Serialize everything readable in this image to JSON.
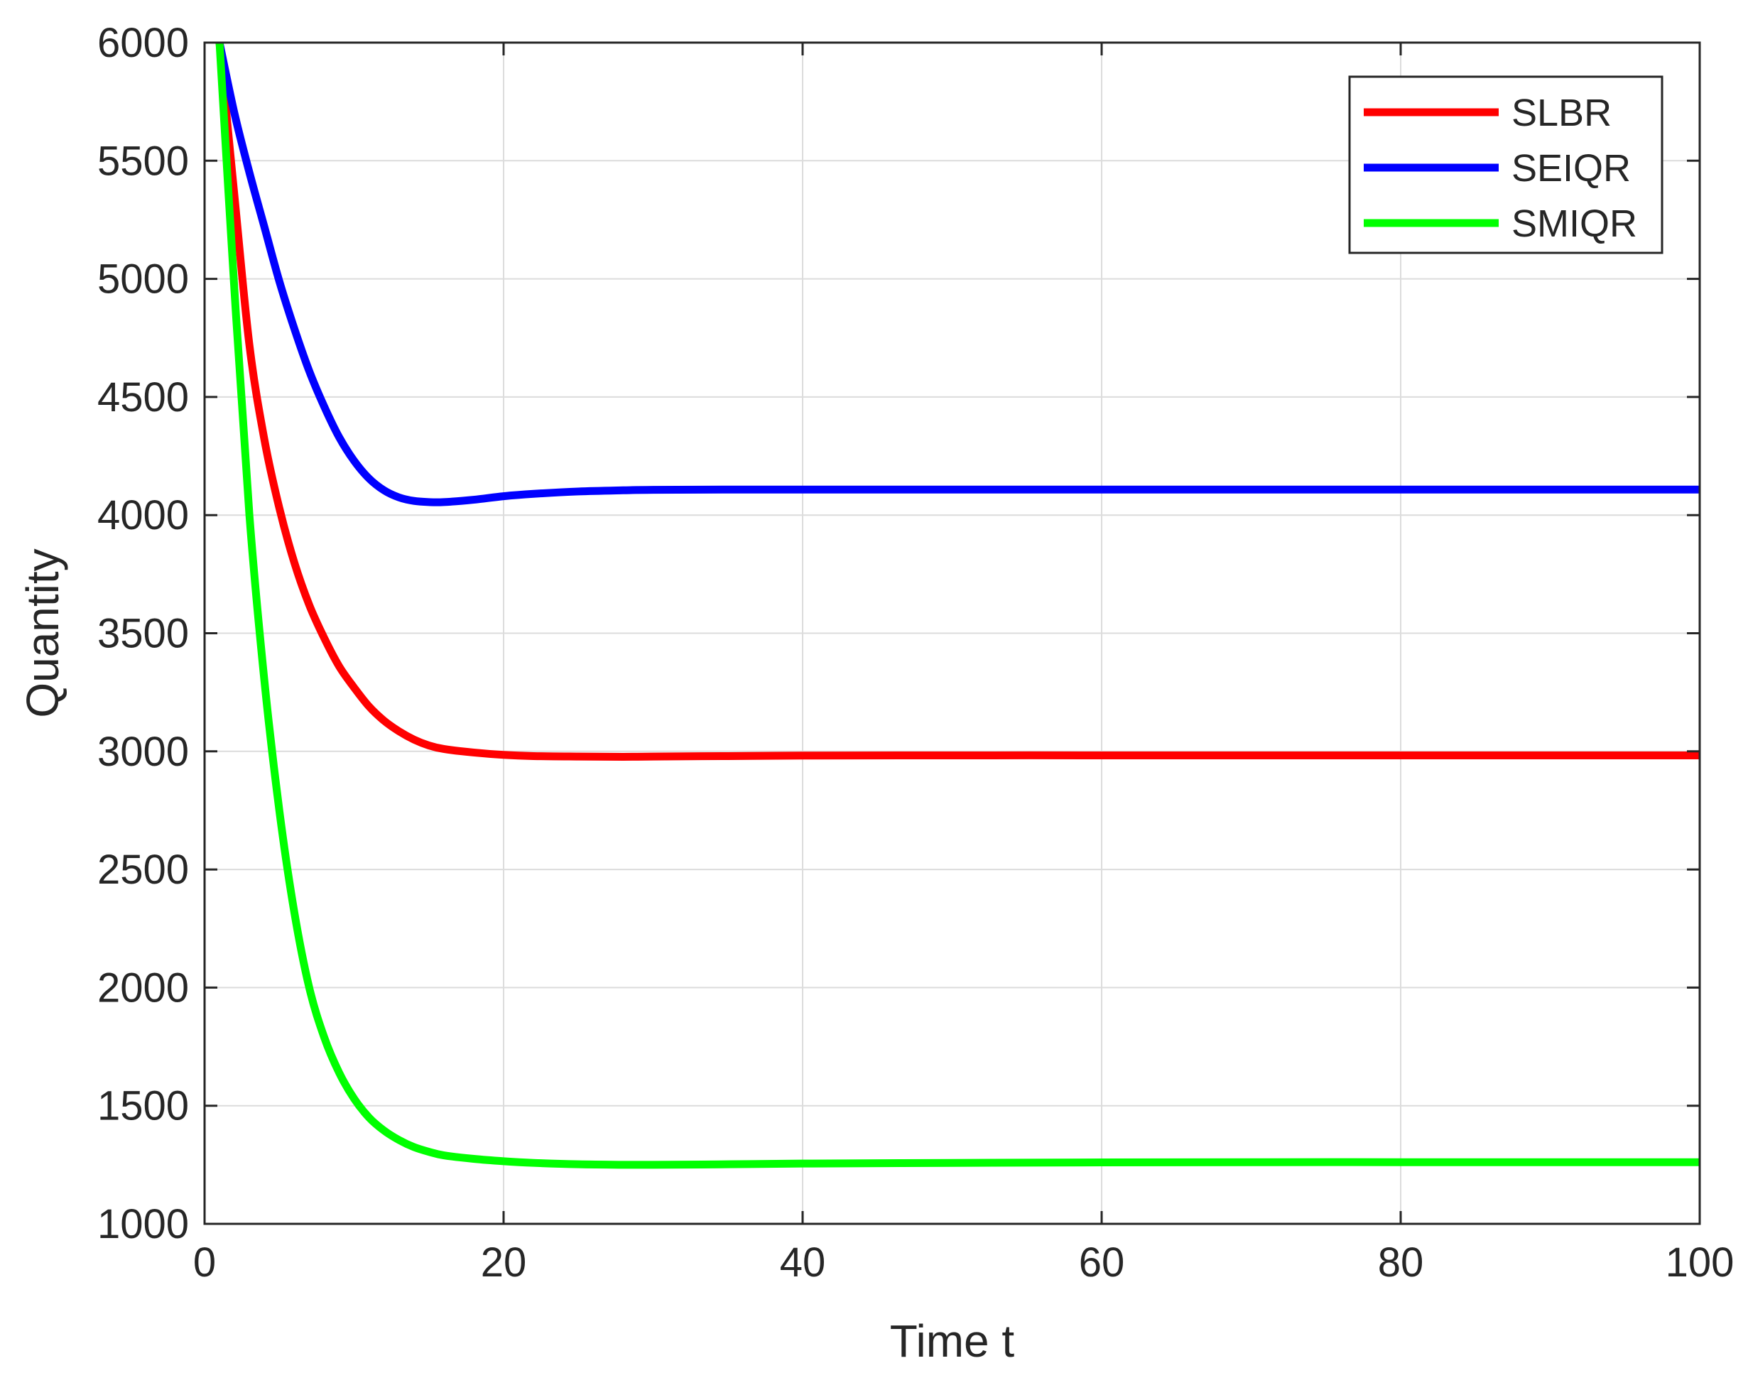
{
  "chart_data": {
    "type": "line",
    "title": "",
    "xlabel": "Time t",
    "ylabel": "Quantity",
    "xlim": [
      0,
      100
    ],
    "ylim": [
      1000,
      6000
    ],
    "xticks": [
      0,
      20,
      40,
      60,
      80,
      100
    ],
    "yticks": [
      1000,
      1500,
      2000,
      2500,
      3000,
      3500,
      4000,
      4500,
      5000,
      5500,
      6000
    ],
    "grid": true,
    "legend_position": "top-right",
    "x": [
      1,
      2,
      3,
      4,
      5,
      6,
      7,
      8,
      9,
      10,
      11,
      12,
      13,
      14,
      15,
      16,
      18,
      20,
      22,
      25,
      28,
      30,
      35,
      40,
      50,
      60,
      70,
      80,
      90,
      100
    ],
    "series": [
      {
        "name": "SLBR",
        "color": "#ff0000",
        "values": [
          6000,
          5350,
          4720,
          4320,
          4030,
          3800,
          3620,
          3480,
          3360,
          3270,
          3190,
          3130,
          3085,
          3050,
          3025,
          3010,
          2995,
          2985,
          2980,
          2978,
          2977,
          2978,
          2980,
          2982,
          2983,
          2983,
          2983,
          2983,
          2983,
          2983
        ]
      },
      {
        "name": "SEIQR",
        "color": "#0000ff",
        "values": [
          6000,
          5700,
          5450,
          5220,
          4990,
          4790,
          4610,
          4460,
          4330,
          4230,
          4155,
          4105,
          4075,
          4060,
          4055,
          4055,
          4065,
          4080,
          4090,
          4100,
          4105,
          4107,
          4108,
          4108,
          4108,
          4108,
          4108,
          4108,
          4108,
          4108
        ]
      },
      {
        "name": "SMIQR",
        "color": "#00ff00",
        "values": [
          6000,
          4950,
          4000,
          3300,
          2750,
          2320,
          2000,
          1790,
          1640,
          1530,
          1450,
          1395,
          1355,
          1325,
          1305,
          1290,
          1275,
          1265,
          1258,
          1252,
          1250,
          1250,
          1252,
          1255,
          1258,
          1260,
          1261,
          1261,
          1261,
          1261
        ]
      }
    ]
  }
}
